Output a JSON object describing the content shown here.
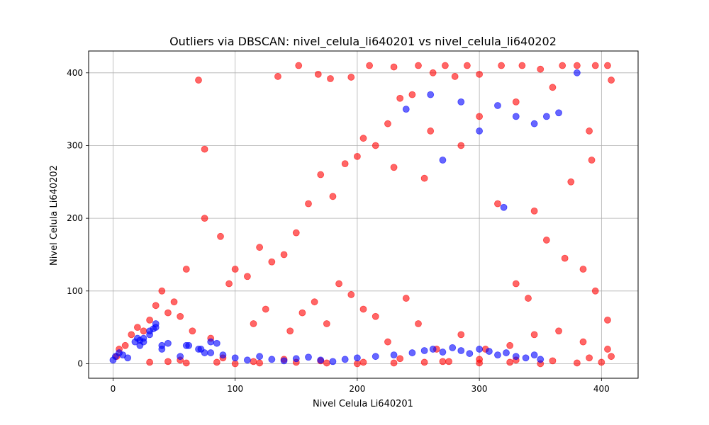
{
  "chart_data": {
    "type": "scatter",
    "title": "Outliers via DBSCAN: nivel_celula_li640201 vs nivel_celula_li640202",
    "xlabel": "Nivel Celula Li640201",
    "ylabel": "Nivel Celula Li640202",
    "xlim": [
      -20,
      430
    ],
    "ylim": [
      -20,
      430
    ],
    "xticks": [
      0,
      100,
      200,
      300,
      400
    ],
    "yticks": [
      0,
      100,
      200,
      300,
      400
    ],
    "grid": true,
    "legend": "none",
    "point_alpha": 0.6,
    "colors": {
      "outlier": "#ff0000",
      "cluster": "#0000ff"
    },
    "series": [
      {
        "role": "outlier",
        "x": [
          70,
          135,
          152,
          168,
          178,
          195,
          210,
          230,
          250,
          262,
          272,
          280,
          290,
          300,
          318,
          335,
          350,
          368,
          380,
          395,
          405,
          408,
          75,
          230,
          255,
          285,
          315,
          345,
          375,
          392,
          260,
          300,
          330,
          360,
          390,
          150,
          160,
          180,
          170,
          190,
          200,
          205,
          215,
          225,
          235,
          245,
          120,
          130,
          140,
          110,
          95,
          100,
          88,
          75,
          60,
          50,
          40,
          35,
          30,
          25,
          20,
          15,
          10,
          5,
          3,
          45,
          55,
          65,
          80,
          115,
          125,
          145,
          155,
          165,
          175,
          185,
          195,
          205,
          215,
          225,
          240,
          250,
          265,
          285,
          305,
          325,
          345,
          365,
          385,
          405,
          55,
          90,
          115,
          140,
          170,
          205,
          235,
          270,
          300,
          330,
          360,
          390,
          408,
          405,
          395,
          385,
          370,
          355,
          340,
          330,
          30,
          45,
          60,
          85,
          100,
          120,
          150,
          175,
          200,
          230,
          255,
          275,
          300,
          325,
          350,
          380,
          400
        ],
        "y": [
          390,
          395,
          410,
          398,
          392,
          394,
          410,
          408,
          410,
          400,
          410,
          395,
          410,
          398,
          410,
          410,
          405,
          410,
          410,
          410,
          410,
          390,
          295,
          270,
          255,
          300,
          220,
          210,
          250,
          280,
          320,
          340,
          360,
          380,
          320,
          180,
          220,
          230,
          260,
          275,
          285,
          310,
          300,
          330,
          365,
          370,
          160,
          140,
          150,
          120,
          110,
          130,
          175,
          200,
          130,
          85,
          100,
          80,
          60,
          45,
          50,
          40,
          25,
          20,
          10,
          70,
          65,
          45,
          35,
          55,
          75,
          45,
          70,
          85,
          55,
          110,
          95,
          75,
          65,
          30,
          90,
          55,
          20,
          40,
          20,
          25,
          40,
          45,
          30,
          20,
          5,
          8,
          3,
          6,
          4,
          2,
          7,
          3,
          6,
          5,
          4,
          8,
          10,
          60,
          100,
          130,
          145,
          170,
          90,
          110,
          2,
          3,
          1,
          2,
          0,
          1,
          2,
          1,
          0,
          1,
          2,
          3,
          1,
          2,
          0,
          1,
          2
        ]
      },
      {
        "role": "cluster",
        "x": [
          0,
          2,
          5,
          8,
          12,
          18,
          22,
          25,
          30,
          35,
          40,
          45,
          55,
          62,
          70,
          75,
          80,
          90,
          100,
          110,
          120,
          130,
          140,
          150,
          160,
          170,
          180,
          190,
          200,
          215,
          230,
          245,
          255,
          262,
          270,
          278,
          285,
          292,
          300,
          308,
          315,
          322,
          330,
          338,
          345,
          350,
          20,
          25,
          30,
          35,
          40,
          60,
          72,
          80,
          85,
          22,
          33,
          240,
          260,
          285,
          300,
          315,
          330,
          345,
          355,
          380,
          365,
          320,
          270
        ],
        "y": [
          5,
          10,
          15,
          12,
          8,
          30,
          25,
          35,
          40,
          50,
          20,
          28,
          10,
          25,
          20,
          15,
          30,
          12,
          8,
          5,
          10,
          6,
          4,
          7,
          9,
          5,
          3,
          6,
          8,
          10,
          12,
          15,
          18,
          20,
          16,
          22,
          18,
          14,
          20,
          17,
          12,
          15,
          10,
          8,
          12,
          6,
          35,
          30,
          45,
          55,
          25,
          25,
          20,
          15,
          28,
          32,
          48,
          350,
          370,
          360,
          320,
          355,
          340,
          330,
          340,
          400,
          345,
          215,
          280
        ]
      }
    ]
  }
}
